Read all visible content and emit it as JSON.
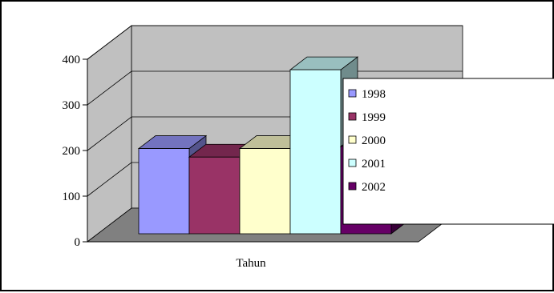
{
  "chart_data": {
    "type": "bar",
    "style": "3d-clustered-column",
    "xlabel": "Tahun",
    "ylabel": "",
    "categories": [
      "Tahun"
    ],
    "ylim": [
      0,
      400
    ],
    "yticks": [
      0,
      100,
      200,
      300,
      400
    ],
    "grid": true,
    "legend_position": "right",
    "series": [
      {
        "name": "1998",
        "values": [
          200
        ],
        "color": "#9999ff"
      },
      {
        "name": "1999",
        "values": [
          180
        ],
        "color": "#993366"
      },
      {
        "name": "2000",
        "values": [
          200
        ],
        "color": "#ffffcc"
      },
      {
        "name": "2001",
        "values": [
          385
        ],
        "color": "#ccffff"
      },
      {
        "name": "2002",
        "values": [
          205
        ],
        "color": "#660066"
      }
    ],
    "colors": {
      "wall": "#c0c0c0",
      "floor": "#808080",
      "legend_border": "#000000"
    }
  }
}
